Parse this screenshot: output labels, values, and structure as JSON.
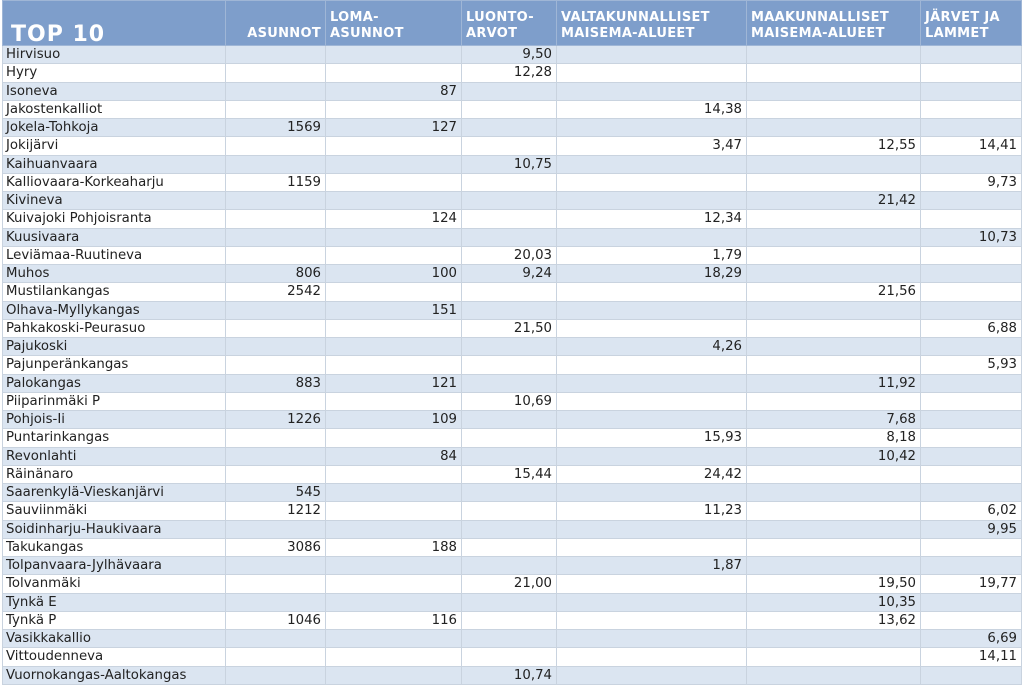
{
  "header": {
    "title": "TOP 10",
    "columns": [
      "ASUNNOT",
      "LOMA-\nASUNNOT",
      "LUONTO-\nARVOT",
      "VALTAKUNNALLISET\nMAISEMA-ALUEET",
      "MAAKUNNALLISET\nMAISEMA-ALUEET",
      "JÄRVET JA\nLAMMET"
    ]
  },
  "rows": [
    [
      "Hirvisuo",
      "",
      "",
      "9,50",
      "",
      "",
      ""
    ],
    [
      "Hyry",
      "",
      "",
      "12,28",
      "",
      "",
      ""
    ],
    [
      "Isoneva",
      "",
      "87",
      "",
      "",
      "",
      ""
    ],
    [
      "Jakostenkalliot",
      "",
      "",
      "",
      "14,38",
      "",
      ""
    ],
    [
      "Jokela-Tohkoja",
      "1569",
      "127",
      "",
      "",
      "",
      ""
    ],
    [
      "Jokijärvi",
      "",
      "",
      "",
      "3,47",
      "12,55",
      "14,41"
    ],
    [
      "Kaihuanvaara",
      "",
      "",
      "10,75",
      "",
      "",
      ""
    ],
    [
      "Kalliovaara-Korkeaharju",
      "1159",
      "",
      "",
      "",
      "",
      "9,73"
    ],
    [
      "Kivineva",
      "",
      "",
      "",
      "",
      "21,42",
      ""
    ],
    [
      "Kuivajoki Pohjoisranta",
      "",
      "124",
      "",
      "12,34",
      "",
      ""
    ],
    [
      "Kuusivaara",
      "",
      "",
      "",
      "",
      "",
      "10,73"
    ],
    [
      "Leviämaa-Ruutineva",
      "",
      "",
      "20,03",
      "1,79",
      "",
      ""
    ],
    [
      "Muhos",
      "806",
      "100",
      "9,24",
      "18,29",
      "",
      ""
    ],
    [
      "Mustilankangas",
      "2542",
      "",
      "",
      "",
      "21,56",
      ""
    ],
    [
      "Olhava-Myllykangas",
      "",
      "151",
      "",
      "",
      "",
      ""
    ],
    [
      "Pahkakoski-Peurasuo",
      "",
      "",
      "21,50",
      "",
      "",
      "6,88"
    ],
    [
      "Pajukoski",
      "",
      "",
      "",
      "4,26",
      "",
      ""
    ],
    [
      "Pajunperänkangas",
      "",
      "",
      "",
      "",
      "",
      "5,93"
    ],
    [
      "Palokangas",
      "883",
      "121",
      "",
      "",
      "11,92",
      ""
    ],
    [
      "Piiparinmäki P",
      "",
      "",
      "10,69",
      "",
      "",
      ""
    ],
    [
      "Pohjois-Ii",
      "1226",
      "109",
      "",
      "",
      "7,68",
      ""
    ],
    [
      "Puntarinkangas",
      "",
      "",
      "",
      "15,93",
      "8,18",
      ""
    ],
    [
      "Revonlahti",
      "",
      "84",
      "",
      "",
      "10,42",
      ""
    ],
    [
      "Räinänaro",
      "",
      "",
      "15,44",
      "24,42",
      "",
      ""
    ],
    [
      "Saarenkylä-Vieskanjärvi",
      "545",
      "",
      "",
      "",
      "",
      ""
    ],
    [
      "Sauviinmäki",
      "1212",
      "",
      "",
      "11,23",
      "",
      "6,02"
    ],
    [
      "Soidinharju-Haukivaara",
      "",
      "",
      "",
      "",
      "",
      "9,95"
    ],
    [
      "Takukangas",
      "3086",
      "188",
      "",
      "",
      "",
      ""
    ],
    [
      "Tolpanvaara-Jylhävaara",
      "",
      "",
      "",
      "1,87",
      "",
      ""
    ],
    [
      "Tolvanmäki",
      "",
      "",
      "21,00",
      "",
      "19,50",
      "19,77"
    ],
    [
      "Tynkä E",
      "",
      "",
      "",
      "",
      "10,35",
      ""
    ],
    [
      "Tynkä P",
      "1046",
      "116",
      "",
      "",
      "13,62",
      ""
    ],
    [
      "Vasikkakallio",
      "",
      "",
      "",
      "",
      "",
      "6,69"
    ],
    [
      "Vittoudenneva",
      "",
      "",
      "",
      "",
      "",
      "14,11"
    ],
    [
      "Vuornokangas-Aaltokangas",
      "",
      "",
      "10,74",
      "",
      "",
      ""
    ]
  ],
  "colors": {
    "header_bg": "#7e9ecb",
    "stripe_bg": "#dbe5f1",
    "header_text": "#ffffff"
  }
}
